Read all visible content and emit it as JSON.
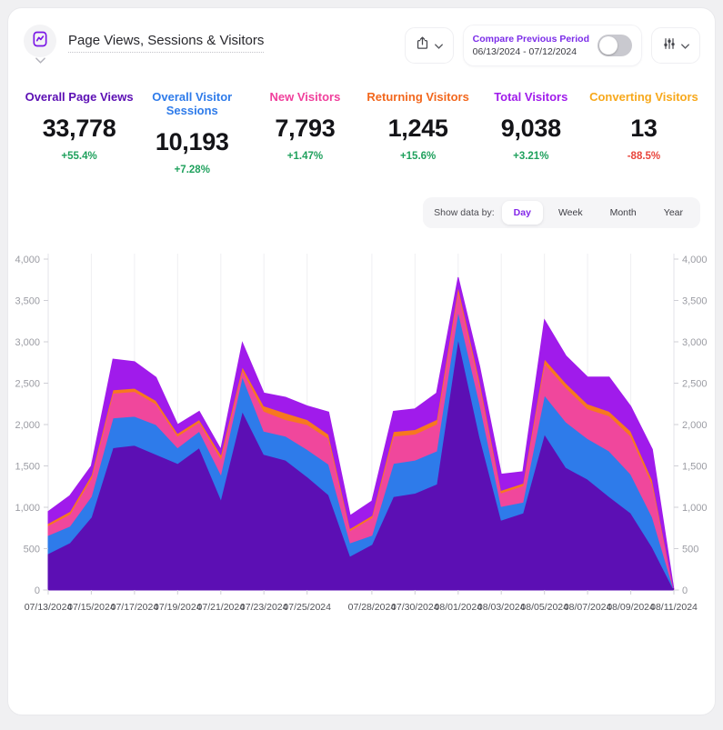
{
  "header": {
    "title": "Page Views, Sessions & Visitors",
    "widget_icon": "line-chart-icon",
    "export_icon": "share-upload-icon",
    "filter_icon": "sliders-icon",
    "compare": {
      "label": "Compare Previous Period",
      "range": "06/13/2024 - 07/12/2024",
      "enabled": false,
      "label_color": "#7b2ce8"
    }
  },
  "metrics": [
    {
      "label": "Overall Page Views",
      "value": "33,778",
      "delta": "+55.4%",
      "color": "#5c0fb4",
      "delta_color": "#1fa15d"
    },
    {
      "label": "Overall Visitor Sessions",
      "value": "10,193",
      "delta": "+7.28%",
      "color": "#2e7bea",
      "delta_color": "#1fa15d"
    },
    {
      "label": "New Visitors",
      "value": "7,793",
      "delta": "+1.47%",
      "color": "#f0409c",
      "delta_color": "#1fa15d"
    },
    {
      "label": "Returning Visitors",
      "value": "1,245",
      "delta": "+15.6%",
      "color": "#f2671d",
      "delta_color": "#1fa15d"
    },
    {
      "label": "Total Visitors",
      "value": "9,038",
      "delta": "+3.21%",
      "color": "#a01beb",
      "delta_color": "#1fa15d"
    },
    {
      "label": "Converting Visitors",
      "value": "13",
      "delta": "-88.5%",
      "color": "#f7a81b",
      "delta_color": "#e8453c"
    }
  ],
  "show_data_by": {
    "label": "Show data by:",
    "options": [
      "Day",
      "Week",
      "Month",
      "Year"
    ],
    "selected": "Day"
  },
  "chart_data": {
    "type": "area",
    "stacked": true,
    "title": "Page Views, Sessions & Visitors",
    "grid": "vertical",
    "legend": "none",
    "y_axis_sides": [
      "left",
      "right"
    ],
    "ylim": [
      0,
      4000
    ],
    "y_ticks": [
      0,
      500,
      1000,
      1500,
      2000,
      2500,
      3000,
      3500,
      4000
    ],
    "y_tick_labels": [
      "0",
      "500",
      "1,000",
      "1,500",
      "2,000",
      "2,500",
      "3,000",
      "3,500",
      "4,000"
    ],
    "x": [
      "07/13/2024",
      "07/14/2024",
      "07/15/2024",
      "07/16/2024",
      "07/17/2024",
      "07/18/2024",
      "07/19/2024",
      "07/20/2024",
      "07/21/2024",
      "07/22/2024",
      "07/23/2024",
      "07/24/2024",
      "07/25/2024",
      "07/26/2024",
      "07/27/2024",
      "07/28/2024",
      "07/29/2024",
      "07/30/2024",
      "07/31/2024",
      "08/01/2024",
      "08/02/2024",
      "08/03/2024",
      "08/04/2024",
      "08/05/2024",
      "08/06/2024",
      "08/07/2024",
      "08/08/2024",
      "08/09/2024",
      "08/10/2024",
      "08/11/2024"
    ],
    "x_tick_labels": [
      "07/13/2024",
      "07/15/2024",
      "07/17/2024",
      "07/19/2024",
      "07/21/2024",
      "07/23/2024",
      "07/25/2024",
      "07/28/2024",
      "07/30/2024",
      "08/01/2024",
      "08/03/2024",
      "08/05/2024",
      "08/07/2024",
      "08/09/2024",
      "08/11/2024"
    ],
    "series": [
      {
        "name": "Overall Page Views",
        "color": "#5c0fb4",
        "values": [
          440,
          570,
          880,
          1720,
          1750,
          1640,
          1530,
          1720,
          1100,
          2160,
          1640,
          1570,
          1370,
          1150,
          410,
          550,
          1130,
          1170,
          1280,
          3040,
          1850,
          845,
          930,
          1885,
          1480,
          1340,
          1130,
          930,
          515,
          0
        ]
      },
      {
        "name": "Overall Visitor Sessions",
        "color": "#2e7bea",
        "values": [
          220,
          200,
          250,
          360,
          350,
          360,
          190,
          200,
          300,
          420,
          280,
          290,
          330,
          370,
          160,
          110,
          400,
          400,
          400,
          330,
          400,
          165,
          130,
          470,
          550,
          490,
          550,
          470,
          365,
          0
        ]
      },
      {
        "name": "New Visitors",
        "color": "#f0479c",
        "values": [
          120,
          145,
          220,
          300,
          300,
          250,
          140,
          110,
          190,
          80,
          240,
          200,
          300,
          310,
          150,
          215,
          330,
          315,
          325,
          250,
          230,
          165,
          200,
          385,
          415,
          360,
          425,
          460,
          400,
          0
        ]
      },
      {
        "name": "Returning Visitors",
        "color": "#f7781f",
        "values": [
          25,
          35,
          40,
          40,
          40,
          40,
          35,
          30,
          50,
          40,
          65,
          80,
          60,
          50,
          25,
          25,
          55,
          55,
          55,
          50,
          50,
          30,
          30,
          55,
          55,
          60,
          55,
          60,
          50,
          0
        ]
      },
      {
        "name": "Total Visitors",
        "color": "#a01beb",
        "values": [
          145,
          190,
          110,
          370,
          320,
          280,
          105,
          100,
          60,
          290,
          155,
          190,
          165,
          270,
          155,
          175,
          245,
          250,
          320,
          110,
          170,
          195,
          140,
          470,
          330,
          325,
          415,
          300,
          370,
          0
        ]
      }
    ]
  }
}
